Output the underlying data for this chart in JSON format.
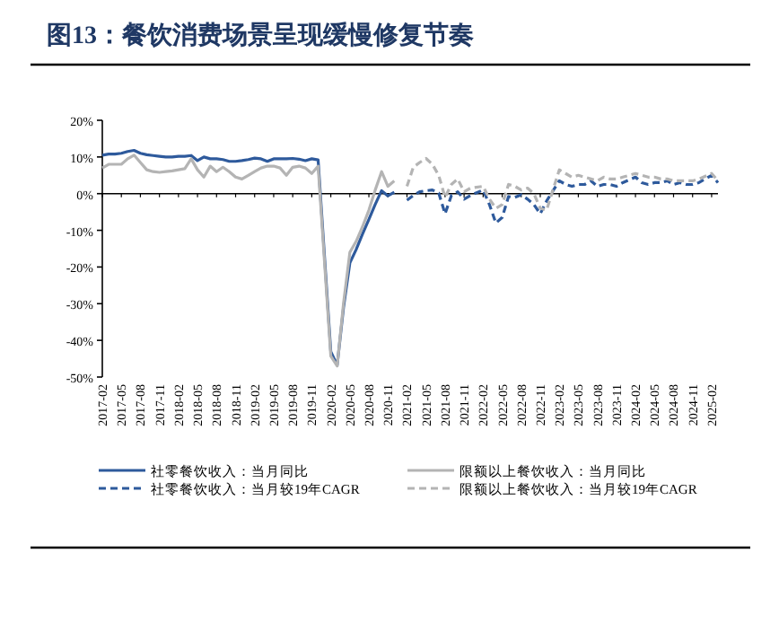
{
  "chart_data": {
    "type": "line",
    "title": "图13：餐饮消费场景呈现缓慢修复节奏",
    "xlim": [
      "2017-02",
      "2025-03"
    ],
    "xticks": [
      "2017-02",
      "2017-05",
      "2017-08",
      "2017-11",
      "2018-02",
      "2018-05",
      "2018-08",
      "2018-11",
      "2019-02",
      "2019-05",
      "2019-08",
      "2019-11",
      "2020-02",
      "2020-05",
      "2020-08",
      "2020-11",
      "2021-02",
      "2021-05",
      "2021-08",
      "2021-11",
      "2022-02",
      "2022-05",
      "2022-08",
      "2022-11",
      "2023-02",
      "2023-05",
      "2023-08",
      "2023-11",
      "2024-02",
      "2024-05",
      "2024-08",
      "2024-11",
      "2025-02"
    ],
    "ylim": [
      -50,
      20
    ],
    "yticks": [
      {
        "value": 20,
        "label": "20%"
      },
      {
        "value": 10,
        "label": "10%"
      },
      {
        "value": 0,
        "label": "0%"
      },
      {
        "value": -10,
        "label": "-10%"
      },
      {
        "value": -20,
        "label": "-20%"
      },
      {
        "value": -30,
        "label": "-30%"
      },
      {
        "value": -40,
        "label": "-40%"
      },
      {
        "value": -50,
        "label": "-50%"
      }
    ],
    "legend": "bottom",
    "series": [
      {
        "name": "社零餐饮收入：当月同比",
        "color": "#2e5a9c",
        "line_style": "solid",
        "x": [
          "2017-02",
          "2017-03",
          "2017-04",
          "2017-05",
          "2017-06",
          "2017-07",
          "2017-08",
          "2017-09",
          "2017-10",
          "2017-11",
          "2017-12",
          "2018-01",
          "2018-02",
          "2018-03",
          "2018-04",
          "2018-05",
          "2018-06",
          "2018-07",
          "2018-08",
          "2018-09",
          "2018-10",
          "2018-11",
          "2018-12",
          "2019-01",
          "2019-02",
          "2019-03",
          "2019-04",
          "2019-05",
          "2019-06",
          "2019-07",
          "2019-08",
          "2019-09",
          "2019-10",
          "2019-11",
          "2019-12",
          "2020-02",
          "2020-03",
          "2020-04",
          "2020-05",
          "2020-06",
          "2020-07",
          "2020-08",
          "2020-09",
          "2020-10",
          "2020-11",
          "2020-12"
        ],
        "values": [
          10.5,
          10.8,
          10.8,
          11.0,
          11.5,
          11.8,
          11.0,
          10.6,
          10.4,
          10.2,
          10.0,
          10.0,
          10.2,
          10.2,
          10.4,
          9.0,
          10.0,
          9.5,
          9.5,
          9.3,
          8.8,
          8.8,
          9.0,
          9.3,
          9.7,
          9.5,
          8.8,
          9.5,
          9.5,
          9.5,
          9.6,
          9.4,
          9.0,
          9.5,
          9.2,
          -43.1,
          -46.8,
          -31.1,
          -18.9,
          -15.2,
          -11.0,
          -7.0,
          -2.9,
          0.8,
          -0.6,
          0.4
        ]
      },
      {
        "name": "社零餐饮收入：当月较19年CAGR",
        "color": "#2e5a9c",
        "line_style": "dashed",
        "x": [
          "2021-02",
          "2021-03",
          "2021-04",
          "2021-05",
          "2021-06",
          "2021-07",
          "2021-08",
          "2021-09",
          "2021-10",
          "2021-11",
          "2021-12",
          "2022-02",
          "2022-03",
          "2022-04",
          "2022-05",
          "2022-06",
          "2022-07",
          "2022-08",
          "2022-09",
          "2022-10",
          "2022-11",
          "2022-12",
          "2023-02",
          "2023-03",
          "2023-04",
          "2023-05",
          "2023-06",
          "2023-07",
          "2023-08",
          "2023-09",
          "2023-10",
          "2023-11",
          "2023-12",
          "2024-02",
          "2024-03",
          "2024-04",
          "2024-05",
          "2024-06",
          "2024-07",
          "2024-08",
          "2024-09",
          "2024-10",
          "2024-11",
          "2024-12",
          "2025-02",
          "2025-03"
        ],
        "values": [
          -1.8,
          -0.5,
          0.5,
          0.8,
          1.0,
          0.2,
          -5.5,
          -0.5,
          0.5,
          -1.5,
          -0.5,
          1.0,
          -3.0,
          -8.0,
          -6.5,
          -0.8,
          -1.0,
          -0.3,
          -1.5,
          -3.0,
          -5.5,
          -2.0,
          3.5,
          2.5,
          2.0,
          2.5,
          2.5,
          3.5,
          2.0,
          2.5,
          2.5,
          2.0,
          3.0,
          4.5,
          3.0,
          2.5,
          3.0,
          3.0,
          3.5,
          2.5,
          3.0,
          2.5,
          2.5,
          3.0,
          5.0,
          3.0
        ]
      },
      {
        "name": "限额以上餐饮收入：当月同比",
        "color": "#b4b4b4",
        "line_style": "solid",
        "x": [
          "2017-02",
          "2017-03",
          "2017-04",
          "2017-05",
          "2017-06",
          "2017-07",
          "2017-08",
          "2017-09",
          "2017-10",
          "2017-11",
          "2017-12",
          "2018-01",
          "2018-02",
          "2018-03",
          "2018-04",
          "2018-05",
          "2018-06",
          "2018-07",
          "2018-08",
          "2018-09",
          "2018-10",
          "2018-11",
          "2018-12",
          "2019-01",
          "2019-02",
          "2019-03",
          "2019-04",
          "2019-05",
          "2019-06",
          "2019-07",
          "2019-08",
          "2019-09",
          "2019-10",
          "2019-11",
          "2019-12",
          "2020-02",
          "2020-03",
          "2020-04",
          "2020-05",
          "2020-06",
          "2020-07",
          "2020-08",
          "2020-09",
          "2020-10",
          "2020-11",
          "2020-12"
        ],
        "values": [
          7.0,
          8.0,
          8.0,
          8.0,
          9.5,
          10.5,
          8.5,
          6.5,
          6.0,
          5.8,
          6.0,
          6.2,
          6.5,
          6.8,
          9.5,
          6.5,
          4.5,
          7.5,
          6.0,
          7.2,
          6.0,
          4.5,
          4.0,
          5.0,
          6.0,
          7.0,
          7.5,
          7.5,
          7.0,
          5.0,
          7.2,
          7.5,
          7.0,
          5.5,
          7.5,
          -44.3,
          -47.0,
          -30.0,
          -16.0,
          -13.0,
          -9.0,
          -4.5,
          1.0,
          6.0,
          2.0,
          3.5
        ]
      },
      {
        "name": "限额以上餐饮收入：当月较19年CAGR",
        "color": "#b4b4b4",
        "line_style": "dashed",
        "x": [
          "2021-02",
          "2021-03",
          "2021-04",
          "2021-05",
          "2021-06",
          "2021-07",
          "2021-08",
          "2021-09",
          "2021-10",
          "2021-11",
          "2021-12",
          "2022-02",
          "2022-03",
          "2022-04",
          "2022-05",
          "2022-06",
          "2022-07",
          "2022-08",
          "2022-09",
          "2022-10",
          "2022-11",
          "2022-12",
          "2023-02",
          "2023-03",
          "2023-04",
          "2023-05",
          "2023-06",
          "2023-07",
          "2023-08",
          "2023-09",
          "2023-10",
          "2023-11",
          "2023-12",
          "2024-02",
          "2024-03",
          "2024-04",
          "2024-05",
          "2024-06",
          "2024-07",
          "2024-08",
          "2024-09",
          "2024-10",
          "2024-11",
          "2024-12",
          "2025-02",
          "2025-03"
        ],
        "values": [
          2.0,
          7.2,
          8.5,
          9.6,
          8.0,
          5.0,
          -1.0,
          2.5,
          4.0,
          0.5,
          1.5,
          2.0,
          -1.5,
          -4.0,
          -3.0,
          2.5,
          2.0,
          1.0,
          1.5,
          0.0,
          -4.0,
          -4.5,
          6.5,
          5.5,
          4.5,
          5.0,
          4.5,
          4.0,
          3.5,
          4.5,
          4.0,
          4.0,
          4.5,
          5.5,
          5.0,
          4.5,
          4.5,
          4.0,
          4.0,
          3.5,
          3.5,
          3.5,
          3.5,
          4.0,
          5.5,
          3.5
        ]
      }
    ]
  }
}
